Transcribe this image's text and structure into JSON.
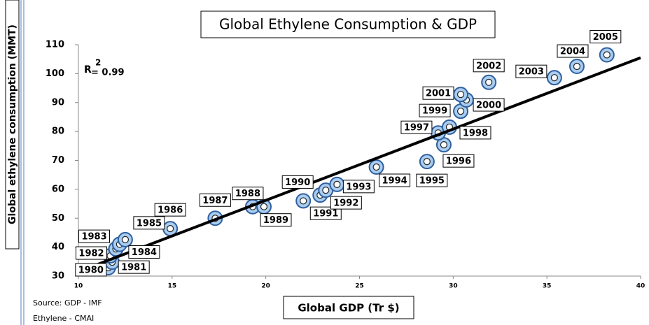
{
  "chart_data": {
    "type": "scatter",
    "title": "Global Ethylene Consumption & GDP",
    "x_label": "Global GDP (Tr $)",
    "y_label": "Global ethylene consumption (MMT)",
    "annotation": {
      "base": "R",
      "sup": "2",
      "rest": "= 0.99"
    },
    "source": [
      "Source: GDP - IMF",
      "Ethylene - CMAI"
    ],
    "labels": [
      "1980",
      "1981",
      "1982",
      "1983",
      "1984",
      "1985",
      "1986",
      "1987",
      "1988",
      "1989",
      "1990",
      "1991",
      "1992",
      "1993",
      "1994",
      "1995",
      "1996",
      "1997",
      "1998",
      "1999",
      "2000",
      "2001",
      "2002",
      "2003",
      "2004",
      "2005"
    ],
    "x": [
      11.6,
      11.8,
      11.7,
      12.0,
      12.2,
      12.5,
      14.9,
      17.3,
      19.3,
      19.9,
      22.0,
      22.9,
      23.2,
      23.8,
      25.9,
      28.6,
      29.5,
      29.2,
      29.8,
      30.4,
      30.7,
      30.4,
      31.9,
      35.4,
      36.6,
      38.2
    ],
    "values": [
      32.9,
      34.8,
      37,
      39.4,
      41,
      42.6,
      46.4,
      50,
      54,
      54,
      56,
      58,
      59.7,
      61.7,
      67.7,
      69.6,
      75.4,
      79.5,
      81.5,
      87,
      90.9,
      92.8,
      97,
      98.6,
      102.5,
      106.5
    ],
    "color": "#a9cdf0",
    "trend": {
      "x": [
        11,
        40
      ],
      "y": [
        34,
        105.5
      ]
    },
    "xlim": [
      10,
      40
    ],
    "xticks": [
      10,
      15,
      20,
      25,
      30,
      35,
      40
    ],
    "ylim": [
      30,
      110
    ],
    "yticks": [
      30,
      40,
      50,
      60,
      70,
      80,
      90,
      100,
      110
    ]
  }
}
